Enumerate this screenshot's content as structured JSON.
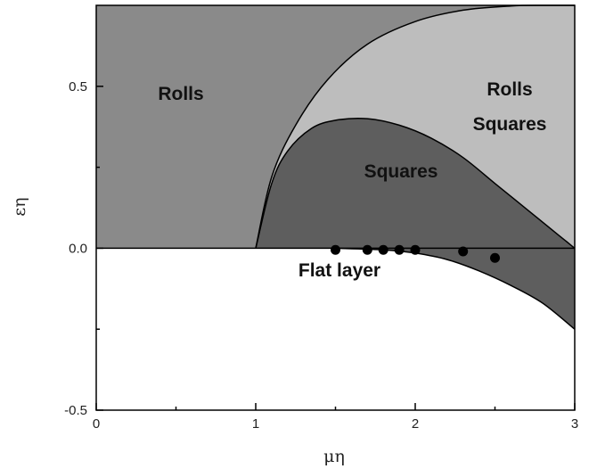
{
  "chart_data": {
    "type": "scatter",
    "xlabel": "μη",
    "ylabel": "εη",
    "xlim": [
      0,
      3
    ],
    "ylim": [
      -0.5,
      0.75
    ],
    "x_ticks": [
      "0",
      "1",
      "2",
      "3"
    ],
    "y_ticks": [
      "-0.5",
      "0.0",
      "0.5"
    ],
    "regions": [
      {
        "label": "Rolls",
        "color": "#8a8a8a"
      },
      {
        "label": "Rolls\nSquares",
        "color": "#bdbdbd"
      },
      {
        "label": "Squares",
        "color": "#5e5e5e"
      },
      {
        "label": "Flat layer",
        "color": "#ffffff"
      }
    ],
    "region_label_lines": {
      "rolls": "Rolls",
      "rolls_squares_1": "Rolls",
      "rolls_squares_2": "Squares",
      "squares": "Squares",
      "flat": "Flat layer"
    },
    "boundaries": {
      "outer_squares_upper": [
        [
          1.0,
          0.0
        ],
        [
          1.1,
          0.2
        ],
        [
          1.2,
          0.3
        ],
        [
          1.35,
          0.37
        ],
        [
          1.5,
          0.395
        ],
        [
          1.7,
          0.4
        ],
        [
          1.9,
          0.38
        ],
        [
          2.1,
          0.34
        ],
        [
          2.3,
          0.28
        ],
        [
          2.5,
          0.2
        ],
        [
          2.7,
          0.12
        ],
        [
          2.9,
          0.04
        ],
        [
          3.0,
          0.0
        ]
      ],
      "rolls_squares_upper": [
        [
          1.0,
          0.0
        ],
        [
          1.1,
          0.22
        ],
        [
          1.25,
          0.38
        ],
        [
          1.45,
          0.52
        ],
        [
          1.7,
          0.63
        ],
        [
          2.0,
          0.7
        ],
        [
          2.3,
          0.735
        ],
        [
          2.6,
          0.748
        ],
        [
          2.8,
          0.75
        ],
        [
          3.0,
          0.75
        ]
      ],
      "squares_lower": [
        [
          1.5,
          0.0
        ],
        [
          1.8,
          -0.005
        ],
        [
          2.0,
          -0.015
        ],
        [
          2.2,
          -0.035
        ],
        [
          2.4,
          -0.07
        ],
        [
          2.6,
          -0.115
        ],
        [
          2.8,
          -0.17
        ],
        [
          3.0,
          -0.25
        ]
      ]
    },
    "points": [
      {
        "x": 1.5,
        "y": -0.005
      },
      {
        "x": 1.7,
        "y": -0.005
      },
      {
        "x": 1.8,
        "y": -0.005
      },
      {
        "x": 1.9,
        "y": -0.005
      },
      {
        "x": 2.0,
        "y": -0.005
      },
      {
        "x": 2.3,
        "y": -0.01
      },
      {
        "x": 2.5,
        "y": -0.03
      }
    ],
    "grid": false,
    "legend": "none"
  }
}
